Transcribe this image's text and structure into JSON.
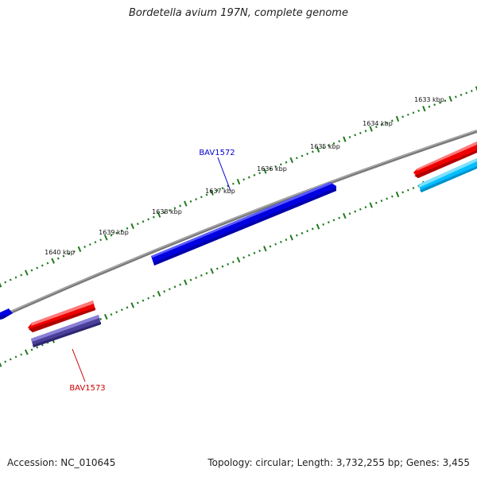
{
  "header": {
    "title": "Bordetella avium 197N, complete genome"
  },
  "footer": {
    "accession": "Accession: NC_010645",
    "summary": "Topology: circular; Length: 3,732,255 bp; Genes: 3,455"
  },
  "map": {
    "backbone_color": "#7a7a7a",
    "tick_color": "#1f7a1f",
    "scale_labels": [
      "1633 kbp",
      "1634 kbp",
      "1635 kbp",
      "1636 kbp",
      "1637 kbp",
      "1638 kbp",
      "1639 kbp",
      "1640 kbp"
    ],
    "genes": [
      {
        "name": "BAV1572",
        "strand": "forward",
        "color": "#0000e0",
        "labeled": true,
        "label_color": "#0000cc"
      },
      {
        "name": "BAV1573",
        "strand": "reverse",
        "color": "#ee0000",
        "labeled": true,
        "label_color": "#cc0000"
      },
      {
        "name": "reverse-gene-purple",
        "strand": "reverse",
        "color": "#4a3f9a",
        "labeled": false
      },
      {
        "name": "reverse-gene-top-right",
        "strand": "reverse",
        "color": "#ee0000",
        "labeled": false
      },
      {
        "name": "reverse-gene-cyan",
        "strand": "reverse",
        "color": "#00bfff",
        "labeled": false
      },
      {
        "name": "forward-gene-left-edge",
        "strand": "forward",
        "color": "#0000e0",
        "labeled": false
      }
    ]
  }
}
